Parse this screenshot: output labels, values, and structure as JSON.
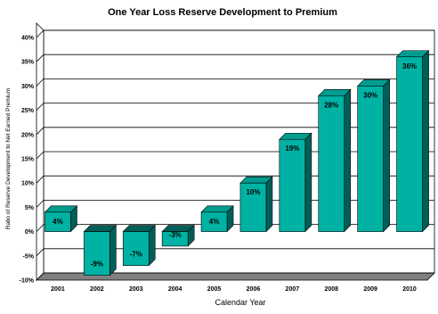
{
  "chart_data": {
    "type": "bar",
    "title": "One Year Loss Reserve Development to Premium",
    "xlabel": "Calendar Year",
    "ylabel": "Ratio of Reserve Development to Net Earned Premium",
    "categories": [
      "2001",
      "2002",
      "2003",
      "2004",
      "2005",
      "2006",
      "2007",
      "2008",
      "2009",
      "2010"
    ],
    "values": [
      4,
      -9,
      -7,
      -3,
      4,
      10,
      19,
      28,
      30,
      36
    ],
    "value_labels": [
      "4%",
      "-9%",
      "-7%",
      "-3%",
      "4%",
      "10%",
      "19%",
      "28%",
      "30%",
      "36%"
    ],
    "ylim": [
      -10,
      40
    ],
    "yticks": [
      -10,
      -5,
      0,
      5,
      10,
      15,
      20,
      25,
      30,
      35,
      40
    ],
    "ytick_labels": [
      "-10%",
      "-5%",
      "0%",
      "5%",
      "10%",
      "15%",
      "20%",
      "25%",
      "30%",
      "35%",
      "40%"
    ],
    "grid": true,
    "legend": "none",
    "colors": {
      "bar_front": "#00b2a4",
      "bar_side": "#005f58",
      "bar_top": "#009c90",
      "wall": "#ffffff",
      "floor": "#808080"
    }
  }
}
